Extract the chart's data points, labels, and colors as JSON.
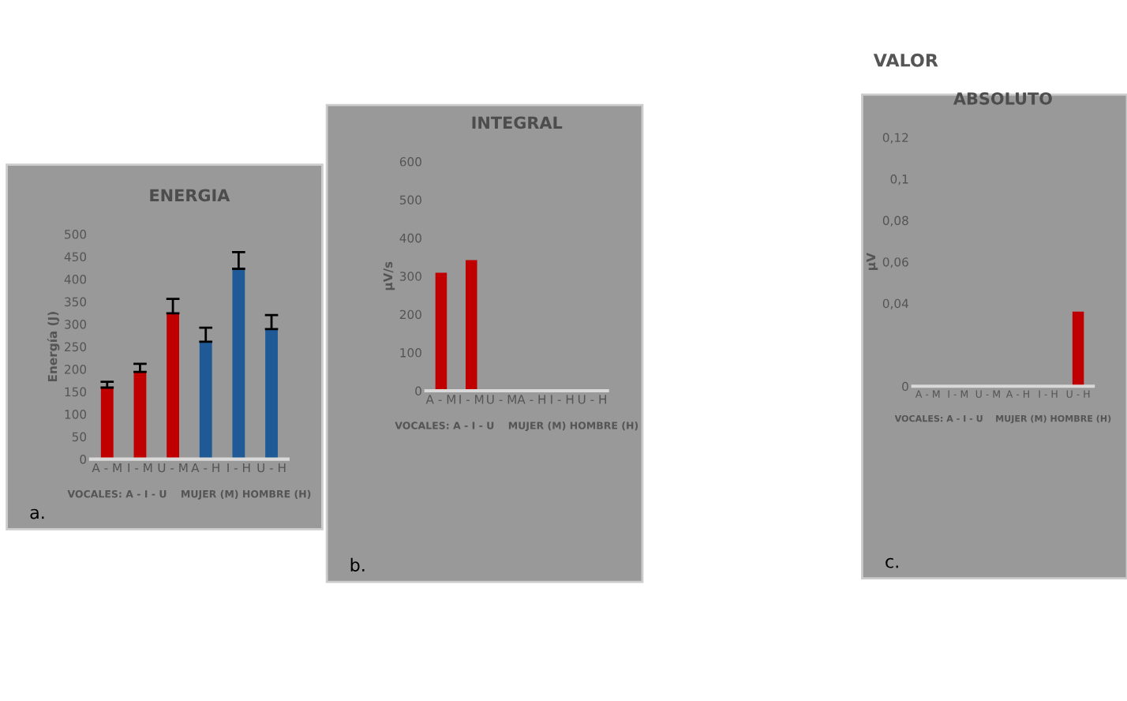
{
  "chart_data": [
    {
      "type": "bar",
      "title": "ENERGIA",
      "ylabel": "Energía (J)",
      "xlabel": "VOCALES: A - I - U    MUJER (M) HOMBRE (H)",
      "categories": [
        "A - M",
        "I - M",
        "U - M",
        "A - H",
        "I - H",
        "U - H"
      ],
      "values": [
        159,
        194,
        324,
        261,
        423,
        289
      ],
      "errors": [
        13,
        18,
        32,
        31,
        37,
        31
      ],
      "colors": [
        "#c00000",
        "#c00000",
        "#c00000",
        "#1f5a96",
        "#1f5a96",
        "#1f5a96"
      ],
      "ylim": [
        0,
        500
      ],
      "yticks": [
        0,
        50,
        100,
        150,
        200,
        250,
        300,
        350,
        400,
        450,
        500
      ],
      "annotations": [
        "a."
      ]
    },
    {
      "type": "bar",
      "title": "INTEGRAL",
      "ylabel": "µV/s",
      "xlabel": "VOCALES: A - I - U    MUJER (M) HOMBRE (H)",
      "categories": [
        "A - M",
        "I - M",
        "U - M",
        "A - H",
        "I - H",
        "U - H"
      ],
      "values": [
        309,
        342,
        null,
        null,
        null,
        null
      ],
      "colors": [
        "#c00000",
        "#c00000",
        "#c00000",
        "#c00000",
        "#c00000",
        "#c00000"
      ],
      "ylim": [
        0,
        600
      ],
      "yticks": [
        0,
        100,
        200,
        300,
        400,
        500,
        600
      ],
      "annotations": [
        "b."
      ]
    },
    {
      "type": "bar",
      "title": "ABSOLUTO",
      "ylabel": "µV",
      "xlabel": "VOCALES: A - I - U    MUJER (M) HOMBRE (H)",
      "categories": [
        "A - M",
        "I - M",
        "U - M",
        "A - H",
        "I - H",
        "U - H"
      ],
      "values": [
        null,
        null,
        null,
        null,
        null,
        0.036
      ],
      "colors": [
        "#c00000",
        "#c00000",
        "#c00000",
        "#c00000",
        "#c00000",
        "#c00000"
      ],
      "ylim": [
        0,
        0.12
      ],
      "yticks": [
        {
          "value": 0,
          "label": "0"
        },
        {
          "value": 0.04,
          "label": "0,04"
        },
        {
          "value": 0.06,
          "label": "0,06"
        },
        {
          "value": 0.08,
          "label": "0,08"
        },
        {
          "value": 0.1,
          "label": "0,1"
        },
        {
          "value": 0.12,
          "label": "0,12"
        }
      ],
      "annotations": [
        "VALOR",
        "c."
      ]
    }
  ]
}
